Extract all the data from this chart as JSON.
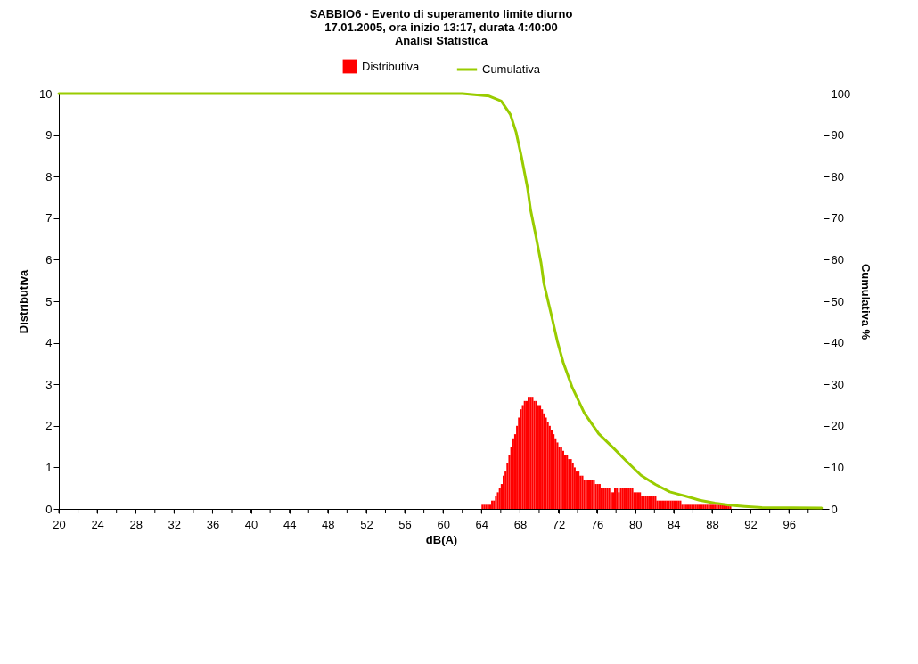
{
  "chart_data": {
    "type": "histogram",
    "title": "SABBIO6 - Evento di superamento limite diurno\n17.01.2005, ora inizio 13:17, durata 4:40:00\nAnalisi Statistica",
    "xlabel": "dB(A)",
    "ylabel": "Distributiva",
    "y2label": "Cumulativa %",
    "bins": [
      64.0,
      64.2,
      64.4,
      64.6,
      64.8,
      65.0,
      65.2,
      65.4,
      65.6,
      65.8,
      66.0,
      66.2,
      66.4,
      66.6,
      66.8,
      67.0,
      67.2,
      67.4,
      67.6,
      67.8,
      68.0,
      68.2,
      68.4,
      68.6,
      68.8,
      69.0,
      69.2,
      69.4,
      69.6,
      69.8,
      70.0,
      70.2,
      70.4,
      70.6,
      70.8,
      71.0,
      71.2,
      71.4,
      71.6,
      71.8,
      72.0,
      72.2,
      72.4,
      72.6,
      72.8,
      73.0,
      73.2,
      73.4,
      73.6,
      73.8,
      74.0,
      74.2,
      74.4,
      74.6,
      74.8,
      75.0,
      75.2,
      75.4,
      75.6,
      75.8,
      76.0,
      76.2,
      76.4,
      76.6,
      76.8,
      77.0,
      77.2,
      77.4,
      77.6,
      77.8,
      78.0,
      78.2,
      78.4,
      78.6,
      78.8,
      79.0,
      79.2,
      79.4,
      79.6,
      79.8,
      80.0,
      80.2,
      80.4,
      80.6,
      80.8,
      81.0,
      81.2,
      81.4,
      81.6,
      81.8,
      82.0,
      82.2,
      82.4,
      82.6,
      82.8,
      83.0,
      83.2,
      83.4,
      83.6,
      83.8,
      84.0,
      84.2,
      84.4,
      84.6,
      84.8,
      85.0,
      85.2,
      85.4,
      85.6,
      85.8,
      86.0,
      86.2,
      86.4,
      86.6,
      86.8,
      87.0,
      87.2,
      87.4,
      87.6,
      87.8,
      88.0,
      88.2,
      88.4,
      88.6,
      88.8,
      89.0,
      89.2,
      89.4,
      89.6,
      89.8,
      90.0,
      90.2,
      90.4
    ],
    "series": [
      {
        "name": "Distributiva",
        "color": "#ff0000",
        "values": [
          0.1,
          0.1,
          0.1,
          0.1,
          0.1,
          0.2,
          0.2,
          0.3,
          0.4,
          0.5,
          0.6,
          0.8,
          0.9,
          1.1,
          1.3,
          1.5,
          1.7,
          1.8,
          2.0,
          2.2,
          2.4,
          2.5,
          2.6,
          2.6,
          2.7,
          2.7,
          2.7,
          2.6,
          2.6,
          2.5,
          2.5,
          2.4,
          2.3,
          2.2,
          2.1,
          2.0,
          1.9,
          1.8,
          1.7,
          1.6,
          1.5,
          1.5,
          1.4,
          1.3,
          1.3,
          1.2,
          1.2,
          1.1,
          1.0,
          0.9,
          0.9,
          0.8,
          0.8,
          0.7,
          0.7,
          0.7,
          0.7,
          0.7,
          0.7,
          0.6,
          0.6,
          0.6,
          0.5,
          0.5,
          0.5,
          0.5,
          0.5,
          0.4,
          0.4,
          0.5,
          0.5,
          0.4,
          0.5,
          0.5,
          0.5,
          0.5,
          0.5,
          0.5,
          0.5,
          0.4,
          0.4,
          0.4,
          0.4,
          0.3,
          0.3,
          0.3,
          0.3,
          0.3,
          0.3,
          0.3,
          0.3,
          0.2,
          0.2,
          0.2,
          0.2,
          0.2,
          0.2,
          0.2,
          0.2,
          0.2,
          0.2,
          0.2,
          0.2,
          0.2,
          0.1,
          0.1,
          0.1,
          0.1,
          0.1,
          0.1,
          0.1,
          0.1,
          0.1,
          0.1,
          0.1,
          0.1,
          0.1,
          0.1,
          0.1,
          0.1,
          0.1,
          0.1,
          0.1,
          0.1,
          0.1,
          0.1,
          0.1,
          0.1,
          0.1,
          0.1,
          null,
          null
        ]
      },
      {
        "name": "Cumulativa",
        "type": "line",
        "axis": "y2",
        "color": "#99cc00",
        "x": [
          20,
          62.0,
          64.8,
          66.05,
          67.0,
          67.6,
          68.2,
          68.8,
          69.1,
          69.6,
          70.2,
          70.5,
          71.3,
          71.9,
          72.5,
          73.4,
          74.7,
          76.2,
          77.8,
          79.0,
          80.6,
          82.1,
          83.6,
          85.2,
          86.7,
          88.3,
          89.8,
          91.4,
          93.2,
          99.4
        ],
        "values": [
          100,
          100,
          99.4,
          98.2,
          95.0,
          90.7,
          84.3,
          77.1,
          72.1,
          66.4,
          59.2,
          54.2,
          46.4,
          40.3,
          35.3,
          29.5,
          23.1,
          18.1,
          14.5,
          11.7,
          8.1,
          5.9,
          4.1,
          3.1,
          2.1,
          1.4,
          0.9,
          0.6,
          0.3,
          0.2
        ]
      }
    ],
    "xlim": [
      20,
      99.6
    ],
    "xticks": [
      20,
      {
        "value": 22,
        "label": null
      },
      24,
      {
        "value": 26,
        "label": null
      },
      28,
      {
        "value": 30,
        "label": null
      },
      32,
      {
        "value": 34,
        "label": null
      },
      36,
      {
        "value": 38,
        "label": null
      },
      40,
      {
        "value": 42,
        "label": null
      },
      44,
      {
        "value": 46,
        "label": null
      },
      48,
      {
        "value": 50,
        "label": null
      },
      52,
      {
        "value": 54,
        "label": null
      },
      56,
      {
        "value": 58,
        "label": null
      },
      60,
      {
        "value": 62,
        "label": null
      },
      64,
      {
        "value": 66,
        "label": null
      },
      68,
      {
        "value": 70,
        "label": null
      },
      72,
      {
        "value": 74,
        "label": null
      },
      76,
      {
        "value": 78,
        "label": null
      },
      80,
      {
        "value": 82,
        "label": null
      },
      84,
      {
        "value": 86,
        "label": null
      },
      88,
      {
        "value": 90,
        "label": null
      },
      92,
      {
        "value": 94,
        "label": null
      },
      96,
      {
        "value": 98,
        "label": null
      }
    ],
    "ylim": [
      0,
      10
    ],
    "yticks": [
      0,
      1,
      2,
      3,
      4,
      5,
      6,
      7,
      8,
      9,
      10
    ],
    "y2lim": [
      0,
      100
    ],
    "y2ticks": [
      0,
      10,
      20,
      30,
      40,
      50,
      60,
      70,
      80,
      90,
      100
    ],
    "legend": "top"
  }
}
